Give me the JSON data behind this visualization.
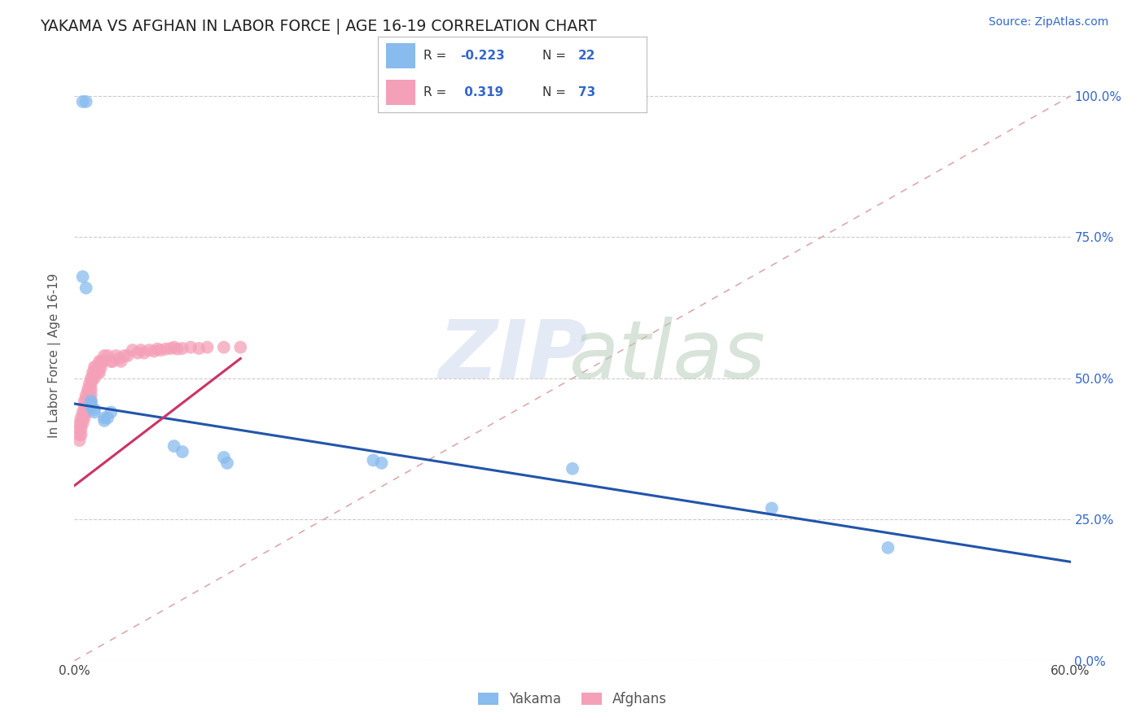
{
  "title": "YAKAMA VS AFGHAN IN LABOR FORCE | AGE 16-19 CORRELATION CHART",
  "source_text": "Source: ZipAtlas.com",
  "ylabel": "In Labor Force | Age 16-19",
  "xlim": [
    0.0,
    0.6
  ],
  "ylim": [
    0.0,
    1.08
  ],
  "yticks": [
    0.0,
    0.25,
    0.5,
    0.75,
    1.0
  ],
  "ytick_labels_right": [
    "0.0%",
    "25.0%",
    "50.0%",
    "75.0%",
    "100.0%"
  ],
  "grid_color": "#cccccc",
  "background_color": "#ffffff",
  "legend_r_yakama": "-0.223",
  "legend_n_yakama": "22",
  "legend_r_afghan": "0.319",
  "legend_n_afghan": "73",
  "yakama_color": "#88bbee",
  "afghan_color": "#f4a0b8",
  "yakama_trend_color": "#2255aa",
  "afghan_trend_color": "#cc3366",
  "ref_line_color": "#ddaaaa",
  "yakama_x": [
    0.005,
    0.007,
    0.005,
    0.007,
    0.01,
    0.01,
    0.01,
    0.012,
    0.012,
    0.018,
    0.018,
    0.02,
    0.022,
    0.06,
    0.065,
    0.09,
    0.092,
    0.18,
    0.185,
    0.3,
    0.42,
    0.49
  ],
  "yakama_y": [
    0.99,
    0.99,
    0.68,
    0.66,
    0.46,
    0.455,
    0.45,
    0.445,
    0.44,
    0.43,
    0.425,
    0.43,
    0.44,
    0.38,
    0.37,
    0.36,
    0.35,
    0.355,
    0.35,
    0.34,
    0.27,
    0.2
  ],
  "afghan_x": [
    0.003,
    0.003,
    0.003,
    0.003,
    0.004,
    0.004,
    0.004,
    0.004,
    0.005,
    0.005,
    0.005,
    0.006,
    0.006,
    0.006,
    0.006,
    0.007,
    0.007,
    0.007,
    0.007,
    0.008,
    0.008,
    0.008,
    0.008,
    0.009,
    0.009,
    0.009,
    0.01,
    0.01,
    0.01,
    0.01,
    0.01,
    0.011,
    0.011,
    0.012,
    0.012,
    0.012,
    0.013,
    0.013,
    0.014,
    0.014,
    0.015,
    0.015,
    0.015,
    0.016,
    0.016,
    0.017,
    0.018,
    0.02,
    0.022,
    0.023,
    0.025,
    0.027,
    0.028,
    0.03,
    0.032,
    0.035,
    0.038,
    0.04,
    0.042,
    0.045,
    0.048,
    0.05,
    0.052,
    0.055,
    0.058,
    0.06,
    0.062,
    0.065,
    0.07,
    0.075,
    0.08,
    0.09,
    0.1
  ],
  "afghan_y": [
    0.42,
    0.41,
    0.4,
    0.39,
    0.43,
    0.42,
    0.41,
    0.4,
    0.44,
    0.43,
    0.42,
    0.46,
    0.45,
    0.44,
    0.43,
    0.47,
    0.46,
    0.45,
    0.44,
    0.48,
    0.47,
    0.46,
    0.45,
    0.49,
    0.48,
    0.47,
    0.5,
    0.49,
    0.48,
    0.47,
    0.46,
    0.51,
    0.5,
    0.52,
    0.51,
    0.5,
    0.52,
    0.51,
    0.52,
    0.51,
    0.53,
    0.52,
    0.51,
    0.53,
    0.52,
    0.53,
    0.54,
    0.54,
    0.53,
    0.53,
    0.54,
    0.535,
    0.53,
    0.54,
    0.54,
    0.55,
    0.545,
    0.55,
    0.545,
    0.55,
    0.548,
    0.552,
    0.55,
    0.552,
    0.553,
    0.555,
    0.552,
    0.553,
    0.555,
    0.553,
    0.555,
    0.555,
    0.555
  ],
  "yakama_trend_x": [
    0.0,
    0.6
  ],
  "yakama_trend_y": [
    0.455,
    0.175
  ],
  "afghan_trend_x": [
    0.0,
    0.1
  ],
  "afghan_trend_y": [
    0.31,
    0.535
  ],
  "ref_line_x": [
    0.0,
    0.6
  ],
  "ref_line_y": [
    0.0,
    1.0
  ]
}
